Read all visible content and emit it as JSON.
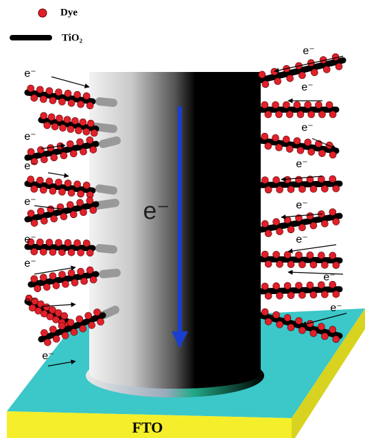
{
  "legend": {
    "dye": "Dye",
    "tio2": "TiO₂"
  },
  "labels": {
    "electron": "e⁻",
    "core_electron": "e⁻",
    "substrate": "FTO"
  }
}
